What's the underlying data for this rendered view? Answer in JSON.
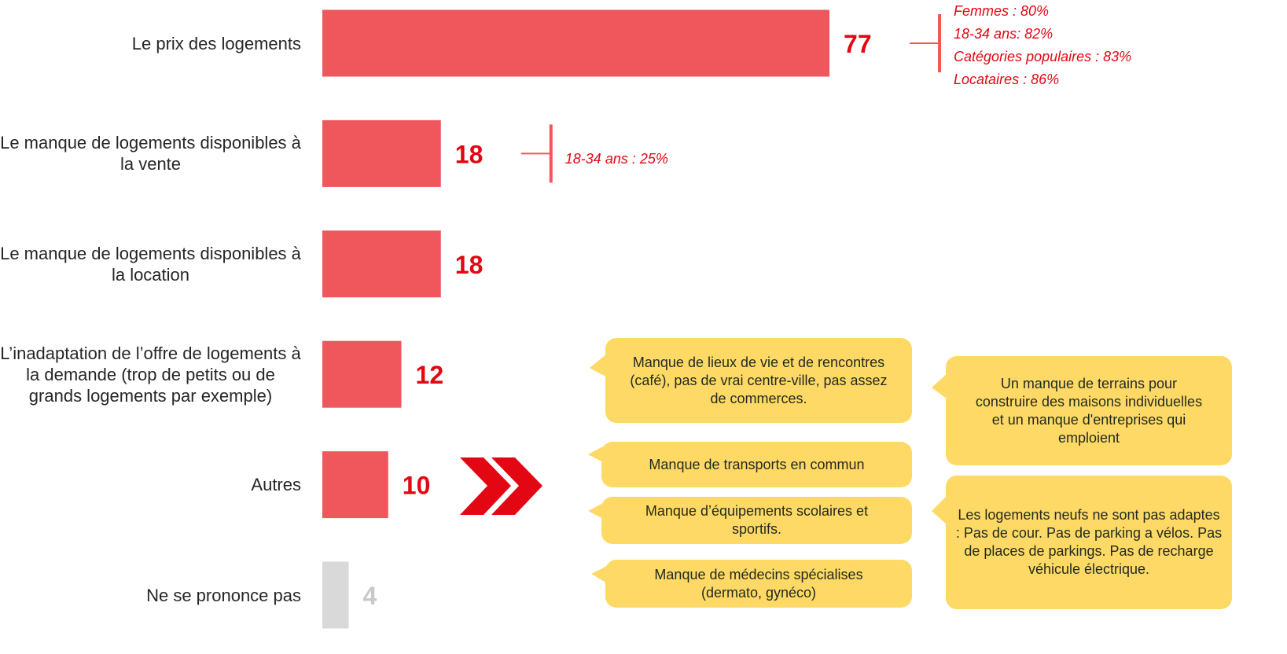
{
  "chart_data": {
    "type": "bar",
    "orientation": "horizontal",
    "categories": [
      "Le prix des logements",
      "Le manque de logements disponibles à la vente",
      "Le manque de logements disponibles à la location",
      "L’inadaptation de l’offre de logements à la demande (trop de petits ou de grands logements par exemple)",
      "Autres",
      "Ne se prononce pas"
    ],
    "values": [
      77,
      18,
      18,
      12,
      10,
      4
    ],
    "colors": [
      "#f0575c",
      "#f0575c",
      "#f0575c",
      "#f0575c",
      "#f0575c",
      "#d9d9d9"
    ],
    "label_colors": [
      "#e30613",
      "#e30613",
      "#e30613",
      "#e30613",
      "#e30613",
      "#c9c9c9"
    ],
    "annotations": [
      [
        "Femmes : 80%",
        "18-34 ans: 82%",
        "Catégories populaires : 83%",
        "Locataires : 86%"
      ],
      [
        "18-34 ans : 25%"
      ],
      null,
      null,
      null,
      null
    ],
    "callouts": [
      "Manque de lieux de vie et de rencontres (café), pas de vrai centre-ville, pas assez de commerces.",
      "Manque de transports en commun",
      "Manque d’équipements scolaires et sportifs.",
      "Manque de médecins spécialises (dermato, gynéco)",
      "Un manque de terrains pour construire des maisons individuelles et un manque d'entreprises qui emploient",
      "Les logements neufs ne sont pas adaptes : Pas de cour. Pas de parking a vélos. Pas de places de parkings. Pas de recharge véhicule électrique."
    ]
  }
}
